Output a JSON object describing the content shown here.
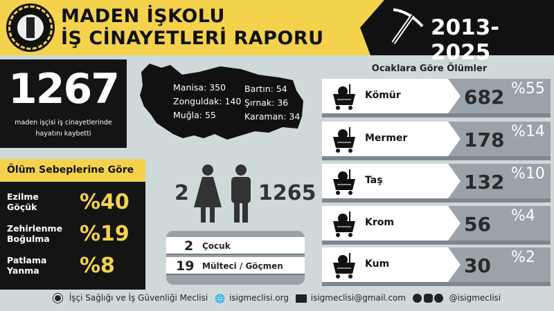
{
  "header": {
    "title_line1": "MADEN İŞKOLU",
    "title_line2": "İŞ CİNAYETLERİ RAPORU",
    "years": "2013-2025",
    "colors": {
      "yellow": "#f4d24c",
      "black": "#111111"
    }
  },
  "total": {
    "number": "1267",
    "caption": "maden işçisi iş cinayetlerinde hayatını kaybetti"
  },
  "causes": {
    "title": "Ölüm Sebeplerine Göre",
    "items": [
      {
        "label_1": "Ezilme",
        "label_2": "Göçük",
        "pct": "%40"
      },
      {
        "label_1": "Zehirlenme",
        "label_2": "Boğulma",
        "pct": "%19"
      },
      {
        "label_1": "Patlama",
        "label_2": "Yanma",
        "pct": "%8"
      }
    ]
  },
  "map": {
    "cities": [
      {
        "text": "Manisa: 350"
      },
      {
        "text": "Zonguldak: 140"
      },
      {
        "text": "Muğla: 55"
      },
      {
        "text": "Bartın: 54"
      },
      {
        "text": "Şırnak: 36"
      },
      {
        "text": "Karaman: 34"
      }
    ]
  },
  "gender": {
    "female": "2",
    "male": "1265"
  },
  "stats": [
    {
      "num": "2",
      "label": "Çocuk"
    },
    {
      "num": "19",
      "label": "Mülteci / Göçmen"
    }
  ],
  "mines": {
    "title": "Ocaklara Göre Ölümler",
    "items": [
      {
        "name": "Kömür",
        "count": "682",
        "pct": "%55"
      },
      {
        "name": "Mermer",
        "count": "178",
        "pct": "%14"
      },
      {
        "name": "Taş",
        "count": "132",
        "pct": "%10"
      },
      {
        "name": "Krom",
        "count": "56",
        "pct": "%4"
      },
      {
        "name": "Kum",
        "count": "30",
        "pct": "%2"
      }
    ]
  },
  "footer": {
    "org": "İşçi Sağlığı ve İş Güvenliği Meclisi",
    "web": "isigmeclisi.org",
    "email": "isigmeclisi@gmail.com",
    "social": "@isigmeclisi",
    "social_icons": [
      "x-icon",
      "instagram-icon",
      "facebook-icon"
    ]
  }
}
